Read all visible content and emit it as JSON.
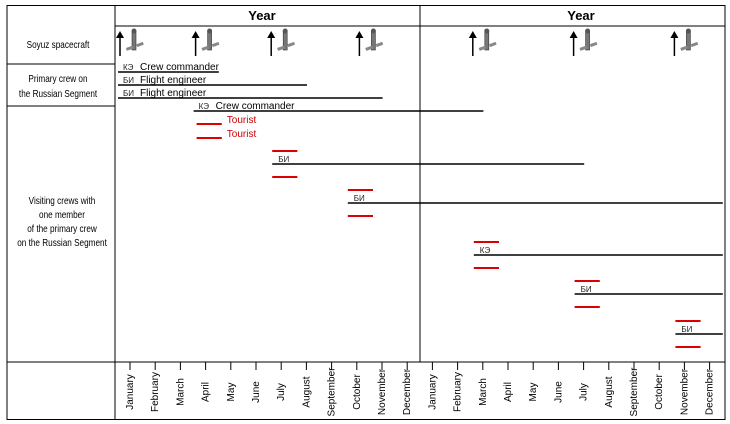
{
  "header": {
    "years": [
      "Year",
      "Year"
    ]
  },
  "rows": {
    "soyuz": "Soyuz spacecraft",
    "primary": [
      "Primary crew on",
      "the Russian Segment"
    ],
    "visiting": [
      "Visiting crews with",
      "one member",
      "of the primary crew",
      "on the Russian Segment"
    ]
  },
  "months": [
    "January",
    "February",
    "March",
    "April",
    "May",
    "June",
    "July",
    "August",
    "September",
    "October",
    "November",
    "December",
    "January",
    "February",
    "March",
    "April",
    "May",
    "June",
    "July",
    "August",
    "September",
    "October",
    "November",
    "December"
  ],
  "icons": {
    "launch_arrow": "arrow-up-icon",
    "spacecraft": "soyuz-spacecraft-icon"
  },
  "colors": {
    "crew_line": "#000000",
    "visiting_line": "#dd0000",
    "tourist_text": "#cc0000"
  },
  "launch_months": [
    1,
    4,
    7,
    10.5,
    15,
    19,
    23
  ],
  "primary_bars": [
    {
      "code": "КЭ",
      "label": "Crew commander",
      "start": 1,
      "end": 5
    },
    {
      "code": "БИ",
      "label": "Flight engineer",
      "start": 1,
      "end": 8.5
    },
    {
      "code": "БИ",
      "label": "Flight engineer",
      "start": 1,
      "end": 11.5
    },
    {
      "code": "КЭ",
      "label": "Crew commander",
      "start": 4,
      "end": 15.5
    }
  ],
  "visiting_groups": [
    {
      "short": [
        4,
        5
      ],
      "reds": 2,
      "labels": [
        "Tourist",
        "Tourist"
      ],
      "code": "",
      "long_end": null
    },
    {
      "short": [
        7,
        8
      ],
      "reds": 2,
      "labels": [],
      "code": "БИ",
      "long_end": 19.5
    },
    {
      "short": [
        10,
        11
      ],
      "reds": 2,
      "labels": [],
      "code": "БИ",
      "long_end": 25
    },
    {
      "short": [
        15,
        16
      ],
      "reds": 2,
      "labels": [],
      "code": "КЭ",
      "long_end": 25
    },
    {
      "short": [
        19,
        20
      ],
      "reds": 2,
      "labels": [],
      "code": "БИ",
      "long_end": 25
    },
    {
      "short": [
        23,
        24
      ],
      "reds": 2,
      "labels": [],
      "code": "БИ",
      "long_end": 25
    }
  ]
}
